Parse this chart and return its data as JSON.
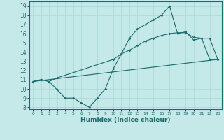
{
  "title": "",
  "xlabel": "Humidex (Indice chaleur)",
  "bg_color": "#c5e8e8",
  "line_color": "#1a6b6b",
  "grid_color": "#a8d8d8",
  "xlim": [
    -0.5,
    23.5
  ],
  "ylim": [
    7.8,
    19.5
  ],
  "yticks": [
    8,
    9,
    10,
    11,
    12,
    13,
    14,
    15,
    16,
    17,
    18,
    19
  ],
  "xticks": [
    0,
    1,
    2,
    3,
    4,
    5,
    6,
    7,
    8,
    9,
    10,
    11,
    12,
    13,
    14,
    15,
    16,
    17,
    18,
    19,
    20,
    21,
    22,
    23
  ],
  "series1_x": [
    0,
    1,
    2,
    3,
    4,
    5,
    6,
    7,
    8,
    9,
    10,
    11,
    12,
    13,
    14,
    15,
    16,
    17,
    18,
    19,
    20,
    21,
    22,
    23
  ],
  "series1_y": [
    10.8,
    11.0,
    10.8,
    9.9,
    9.0,
    9.0,
    8.5,
    8.0,
    9.0,
    10.0,
    12.2,
    13.8,
    15.5,
    16.5,
    17.0,
    17.5,
    18.0,
    19.0,
    16.0,
    16.2,
    15.3,
    15.5,
    13.2,
    13.2
  ],
  "series2_x": [
    0,
    1,
    2,
    3,
    10,
    11,
    12,
    13,
    14,
    15,
    16,
    17,
    18,
    19,
    20,
    21,
    22,
    23
  ],
  "series2_y": [
    10.8,
    11.0,
    10.8,
    11.2,
    13.2,
    13.8,
    14.2,
    14.7,
    15.2,
    15.5,
    15.8,
    16.0,
    16.1,
    16.1,
    15.6,
    15.5,
    15.5,
    13.2
  ],
  "series3_x": [
    0,
    23
  ],
  "series3_y": [
    10.8,
    13.2
  ]
}
